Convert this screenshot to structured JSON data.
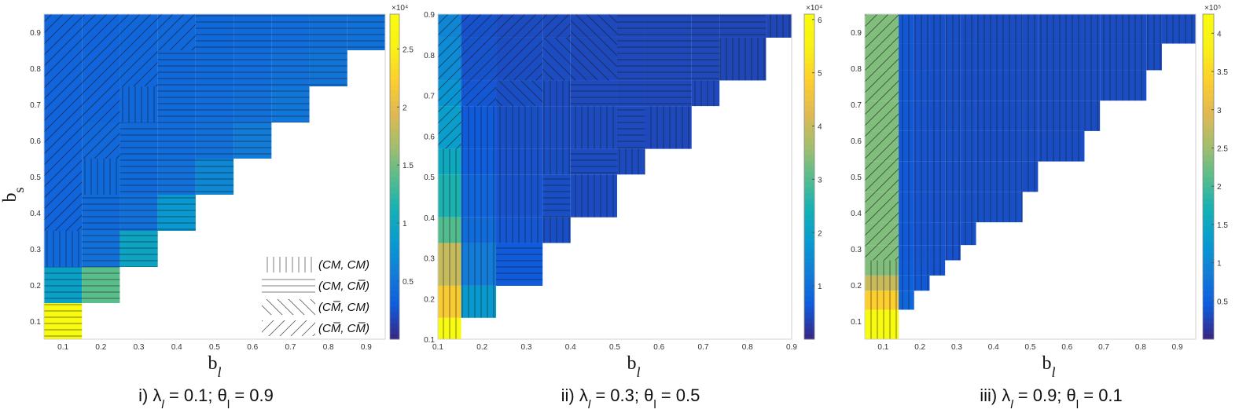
{
  "chart_data": [
    {
      "type": "heatmap",
      "title": "",
      "caption": "i) λl = 0.1; θl = 0.9",
      "xlabel": "bl",
      "ylabel": "bs",
      "xlim": [
        0.05,
        0.95
      ],
      "ylim": [
        0.05,
        0.95
      ],
      "x_ticks": [
        0.1,
        0.2,
        0.3,
        0.4,
        0.5,
        0.6,
        0.7,
        0.8,
        0.9
      ],
      "y_ticks": [
        0.1,
        0.2,
        0.3,
        0.4,
        0.5,
        0.6,
        0.7,
        0.8,
        0.9
      ],
      "bl": [
        0.1,
        0.2,
        0.3,
        0.4,
        0.5,
        0.6,
        0.7,
        0.8,
        0.9
      ],
      "bs": [
        0.1,
        0.2,
        0.3,
        0.4,
        0.5,
        0.6,
        0.7,
        0.8,
        0.9
      ],
      "colorbar": {
        "min": 0,
        "max": 28000,
        "multiplier_label": "×10⁴",
        "ticks": [
          0.5,
          1,
          1.5,
          2,
          2.5
        ],
        "tick_scale": 10000
      },
      "values": [
        [
          28000,
          null,
          null,
          null,
          null,
          null,
          null,
          null,
          null
        ],
        [
          9000,
          14000,
          null,
          null,
          null,
          null,
          null,
          null,
          null
        ],
        [
          4000,
          4500,
          9500,
          null,
          null,
          null,
          null,
          null,
          null
        ],
        [
          3500,
          4000,
          4500,
          8000,
          null,
          null,
          null,
          null,
          null
        ],
        [
          3500,
          4000,
          4000,
          4500,
          6500,
          null,
          null,
          null,
          null
        ],
        [
          3500,
          3800,
          4000,
          4200,
          4500,
          5500,
          null,
          null,
          null
        ],
        [
          3500,
          3600,
          3800,
          4000,
          4200,
          4500,
          5000,
          null,
          null
        ],
        [
          3500,
          3600,
          3700,
          3800,
          4000,
          4200,
          4500,
          4800,
          null
        ],
        [
          3500,
          3600,
          3700,
          3800,
          3900,
          4000,
          4200,
          4400,
          4600
        ]
      ],
      "patterns": [
        [
          "H",
          null,
          null,
          null,
          null,
          null,
          null,
          null,
          null
        ],
        [
          "H",
          "H",
          null,
          null,
          null,
          null,
          null,
          null,
          null
        ],
        [
          "V",
          "H",
          "H",
          null,
          null,
          null,
          null,
          null,
          null
        ],
        [
          "D",
          "H",
          "H",
          "H",
          null,
          null,
          null,
          null,
          null
        ],
        [
          "D",
          "V",
          "H",
          "H",
          "H",
          null,
          null,
          null,
          null
        ],
        [
          "D",
          "D",
          "H",
          "H",
          "H",
          "H",
          null,
          null,
          null
        ],
        [
          "D",
          "D",
          "V",
          "H",
          "H",
          "H",
          "H",
          null,
          null
        ],
        [
          "D",
          "D",
          "D",
          "H",
          "H",
          "H",
          "H",
          "H",
          null
        ],
        [
          "D",
          "D",
          "D",
          "D",
          "H",
          "H",
          "H",
          "H",
          "H"
        ]
      ],
      "legend": {
        "placement": "bottom-right",
        "entries": [
          {
            "pattern": "V",
            "label": "(CM, CM)"
          },
          {
            "pattern": "H",
            "label": "(CM, CM̅)"
          },
          {
            "pattern": "B",
            "label": "(CM̅, CM)"
          },
          {
            "pattern": "D",
            "label": "(CM̅, CM̅)"
          }
        ]
      }
    },
    {
      "type": "heatmap",
      "title": "",
      "caption": "ii) λl = 0.3; θl = 0.5",
      "xlabel": "bl",
      "ylabel": "",
      "xlim": [
        0.1,
        0.9
      ],
      "ylim": [
        0.1,
        0.9
      ],
      "x_ticks": [
        0.1,
        0.2,
        0.3,
        0.4,
        0.5,
        0.6,
        0.7,
        0.8,
        0.9
      ],
      "y_ticks": [
        0.1,
        0.2,
        0.3,
        0.4,
        0.5,
        0.6,
        0.7,
        0.8,
        0.9
      ],
      "bl": [
        0.1263,
        0.1789,
        0.2842,
        0.3684,
        0.4526,
        0.5368,
        0.6211,
        0.7053,
        0.7895,
        0.8737
      ],
      "bs": [
        0.1263,
        0.1789,
        0.2842,
        0.3684,
        0.4526,
        0.5368,
        0.6211,
        0.7053,
        0.7895,
        0.8737
      ],
      "x_edges": [
        0.1,
        0.1526,
        0.2316,
        0.3368,
        0.4,
        0.5053,
        0.5684,
        0.6737,
        0.7368,
        0.8421,
        0.9
      ],
      "y_edges": [
        0.1,
        0.1526,
        0.2316,
        0.3368,
        0.4,
        0.5053,
        0.5684,
        0.6737,
        0.7368,
        0.8421,
        0.9
      ],
      "colorbar": {
        "min": 0,
        "max": 61000,
        "multiplier_label": "×10⁴",
        "ticks": [
          1,
          2,
          3,
          4,
          5,
          6
        ],
        "tick_scale": 10000
      },
      "values": [
        [
          61000,
          null,
          null,
          null,
          null,
          null,
          null,
          null,
          null,
          null
        ],
        [
          48000,
          18000,
          null,
          null,
          null,
          null,
          null,
          null,
          null,
          null
        ],
        [
          40000,
          12000,
          6000,
          null,
          null,
          null,
          null,
          null,
          null,
          null
        ],
        [
          30000,
          9000,
          5500,
          4500,
          null,
          null,
          null,
          null,
          null,
          null
        ],
        [
          25000,
          7500,
          5000,
          4500,
          4200,
          null,
          null,
          null,
          null,
          null
        ],
        [
          22000,
          6500,
          4800,
          4400,
          4100,
          4000,
          null,
          null,
          null,
          null
        ],
        [
          19000,
          6000,
          4600,
          4300,
          4000,
          3900,
          3800,
          null,
          null,
          null
        ],
        [
          17000,
          5500,
          4400,
          4200,
          3900,
          3800,
          3700,
          3700,
          null,
          null
        ],
        [
          15000,
          5000,
          4300,
          4100,
          3800,
          3700,
          3600,
          3600,
          3500,
          null
        ],
        [
          14000,
          4800,
          4200,
          4000,
          3800,
          3700,
          3600,
          3500,
          3500,
          3500
        ]
      ],
      "patterns": [
        [
          "V",
          null,
          null,
          null,
          null,
          null,
          null,
          null,
          null,
          null
        ],
        [
          "V",
          "V",
          null,
          null,
          null,
          null,
          null,
          null,
          null,
          null
        ],
        [
          "V",
          "V",
          "H",
          null,
          null,
          null,
          null,
          null,
          null,
          null
        ],
        [
          "V",
          "V",
          "V",
          "V",
          null,
          null,
          null,
          null,
          null,
          null
        ],
        [
          "V",
          "V",
          "V",
          "H",
          "V",
          null,
          null,
          null,
          null,
          null
        ],
        [
          "V",
          "V",
          "V",
          "V",
          "H",
          "V",
          null,
          null,
          null,
          null
        ],
        [
          "D",
          "V",
          "V",
          "V",
          "V",
          "H",
          "V",
          null,
          null,
          null
        ],
        [
          "D",
          "D",
          "B",
          "V",
          "H",
          "H",
          "H",
          "V",
          null,
          null
        ],
        [
          "D",
          "D",
          "D",
          "B",
          "B",
          "H",
          "H",
          "H",
          "V",
          null
        ],
        [
          "D",
          "D",
          "D",
          "D",
          "B",
          "H",
          "H",
          "H",
          "H",
          "V"
        ]
      ]
    },
    {
      "type": "heatmap",
      "title": "",
      "caption": "iii) λl = 0.9; θl = 0.1",
      "xlabel": "bl",
      "ylabel": "",
      "xlim": [
        0.05,
        0.95
      ],
      "ylim": [
        0.05,
        0.95
      ],
      "x_ticks": [
        0.1,
        0.2,
        0.3,
        0.4,
        0.5,
        0.6,
        0.7,
        0.8,
        0.9
      ],
      "y_ticks": [
        0.1,
        0.2,
        0.3,
        0.4,
        0.5,
        0.6,
        0.7,
        0.8,
        0.9
      ],
      "bl": [
        0.1,
        0.1632,
        0.2053,
        0.2474,
        0.2895,
        0.3316,
        0.4158,
        0.5,
        0.5842,
        0.6684,
        0.7526,
        0.8368,
        0.9
      ],
      "bs": [
        0.1,
        0.1632,
        0.2053,
        0.2474,
        0.2895,
        0.3316,
        0.4158,
        0.5,
        0.5842,
        0.6684,
        0.7526,
        0.8368,
        0.9
      ],
      "x_edges": [
        0.05,
        0.1421,
        0.1842,
        0.2263,
        0.2684,
        0.3105,
        0.3526,
        0.4789,
        0.5211,
        0.6474,
        0.6895,
        0.8158,
        0.8579,
        0.95
      ],
      "y_edges": [
        0.05,
        0.1421,
        0.2316,
        0.3263,
        0.4158,
        0.4947,
        0.5842,
        0.6737,
        0.7632,
        0.8526,
        0.9421,
        0.95,
        0.95,
        0.95
      ],
      "colorbar": {
        "min": 0,
        "max": 425000,
        "multiplier_label": "×10⁵",
        "ticks": [
          0.5,
          1,
          1.5,
          2,
          2.5,
          3,
          3.5,
          4
        ],
        "tick_scale": 100000
      },
      "values": [
        [
          425000,
          null,
          null,
          null,
          null,
          null,
          null,
          null,
          null,
          null,
          null,
          null,
          null
        ],
        [
          340000,
          55000,
          null,
          null,
          null,
          null,
          null,
          null,
          null,
          null,
          null,
          null,
          null
        ],
        [
          280000,
          48000,
          40000,
          null,
          null,
          null,
          null,
          null,
          null,
          null,
          null,
          null,
          null
        ],
        [
          235000,
          44000,
          38000,
          36000,
          null,
          null,
          null,
          null,
          null,
          null,
          null,
          null,
          null
        ],
        [
          235000,
          42000,
          37000,
          35000,
          34000,
          null,
          null,
          null,
          null,
          null,
          null,
          null,
          null
        ],
        [
          235000,
          41000,
          36000,
          35000,
          34000,
          33000,
          null,
          null,
          null,
          null,
          null,
          null,
          null
        ],
        [
          235000,
          40000,
          36000,
          34000,
          33000,
          33000,
          32000,
          null,
          null,
          null,
          null,
          null,
          null
        ],
        [
          235000,
          40000,
          35000,
          34000,
          33000,
          32000,
          32000,
          31000,
          null,
          null,
          null,
          null,
          null
        ],
        [
          235000,
          39000,
          35000,
          34000,
          33000,
          32000,
          31000,
          31000,
          31000,
          null,
          null,
          null,
          null
        ],
        [
          235000,
          39000,
          35000,
          33000,
          32000,
          32000,
          31000,
          31000,
          30000,
          30000,
          null,
          null,
          null
        ],
        [
          235000,
          39000,
          35000,
          33000,
          32000,
          31000,
          31000,
          30000,
          30000,
          30000,
          30000,
          null,
          null
        ],
        [
          235000,
          38000,
          34000,
          33000,
          32000,
          31000,
          31000,
          30000,
          30000,
          30000,
          30000,
          30000,
          null
        ],
        [
          235000,
          38000,
          34000,
          33000,
          32000,
          31000,
          30000,
          30000,
          30000,
          30000,
          30000,
          30000,
          30000
        ]
      ],
      "patterns": [
        [
          "V",
          null,
          null,
          null,
          null,
          null,
          null,
          null,
          null,
          null,
          null,
          null,
          null
        ],
        [
          "V",
          "V",
          null,
          null,
          null,
          null,
          null,
          null,
          null,
          null,
          null,
          null,
          null
        ],
        [
          "V",
          "V",
          "V",
          null,
          null,
          null,
          null,
          null,
          null,
          null,
          null,
          null,
          null
        ],
        [
          "V",
          "V",
          "V",
          "V",
          null,
          null,
          null,
          null,
          null,
          null,
          null,
          null,
          null
        ],
        [
          "D",
          "V",
          "V",
          "V",
          "V",
          null,
          null,
          null,
          null,
          null,
          null,
          null,
          null
        ],
        [
          "D",
          "V",
          "V",
          "V",
          "V",
          "V",
          null,
          null,
          null,
          null,
          null,
          null,
          null
        ],
        [
          "D",
          "V",
          "V",
          "V",
          "V",
          "V",
          "V",
          null,
          null,
          null,
          null,
          null,
          null
        ],
        [
          "D",
          "V",
          "V",
          "V",
          "V",
          "V",
          "V",
          "V",
          null,
          null,
          null,
          null,
          null
        ],
        [
          "D",
          "V",
          "V",
          "V",
          "V",
          "V",
          "V",
          "V",
          "V",
          null,
          null,
          null,
          null
        ],
        [
          "D",
          "V",
          "V",
          "V",
          "V",
          "V",
          "V",
          "V",
          "V",
          "V",
          null,
          null,
          null
        ],
        [
          "D",
          "V",
          "V",
          "V",
          "V",
          "V",
          "V",
          "V",
          "V",
          "V",
          "V",
          null,
          null
        ],
        [
          "D",
          "V",
          "V",
          "V",
          "V",
          "V",
          "V",
          "V",
          "V",
          "V",
          "V",
          "V",
          null
        ],
        [
          "D",
          "V",
          "V",
          "V",
          "V",
          "V",
          "V",
          "V",
          "V",
          "V",
          "V",
          "V",
          "V"
        ]
      ]
    }
  ]
}
